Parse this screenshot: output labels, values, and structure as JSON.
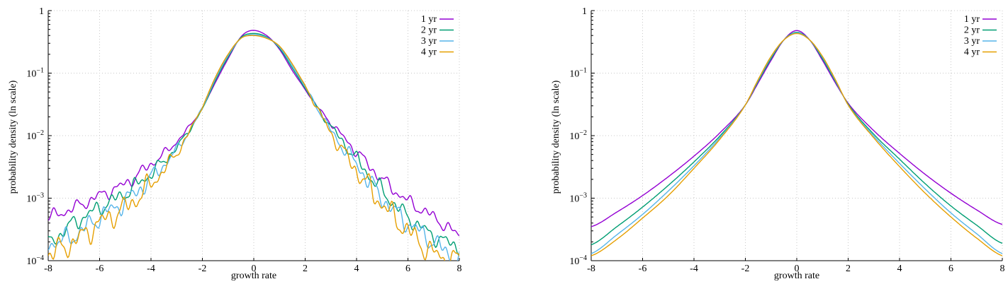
{
  "chart_data": [
    {
      "type": "line",
      "title": "",
      "xlabel": "growth rate",
      "ylabel": "probability density (ln scale)",
      "xlim": [
        -8,
        8
      ],
      "ylim": [
        0.0001,
        1
      ],
      "yscale": "log",
      "xticks": [
        -8,
        -6,
        -4,
        -2,
        0,
        2,
        4,
        6,
        8
      ],
      "xtick_labels": [
        "-8",
        "-6",
        "-4",
        "-2",
        "0",
        "2",
        "4",
        "6",
        "8"
      ],
      "yticks": [
        0.0001,
        0.001,
        0.01,
        0.1,
        1
      ],
      "ytick_labels": [
        {
          "base": "10",
          "exp": "−4"
        },
        {
          "base": "10",
          "exp": "−3"
        },
        {
          "base": "10",
          "exp": "−2"
        },
        {
          "base": "10",
          "exp": "−1"
        },
        {
          "base": "1",
          "exp": ""
        }
      ],
      "grid": true,
      "legend": "top-right",
      "noisy": true,
      "x": [
        -8,
        -7,
        -6,
        -5,
        -4,
        -3,
        -2,
        -1.5,
        -1,
        -0.5,
        -0.1,
        0.5,
        1,
        1.5,
        2,
        2.5,
        3,
        4,
        5,
        6,
        7,
        8
      ],
      "series": [
        {
          "name": "1 yr",
          "color": "#9400d3",
          "values": [
            0.0005,
            0.0007,
            0.0011,
            0.0017,
            0.0035,
            0.008,
            0.028,
            0.07,
            0.17,
            0.38,
            0.48,
            0.4,
            0.24,
            0.11,
            0.055,
            0.028,
            0.016,
            0.0055,
            0.002,
            0.0009,
            0.0005,
            0.00026
          ]
        },
        {
          "name": "2 yr",
          "color": "#009e73",
          "values": [
            0.0002,
            0.0004,
            0.0007,
            0.0012,
            0.0025,
            0.0065,
            0.027,
            0.075,
            0.18,
            0.37,
            0.43,
            0.38,
            0.25,
            0.12,
            0.057,
            0.027,
            0.014,
            0.0042,
            0.0013,
            0.0005,
            0.00025,
            0.00017
          ]
        },
        {
          "name": "3 yr",
          "color": "#56b4e9",
          "values": [
            0.00019,
            0.00025,
            0.0005,
            0.0009,
            0.0021,
            0.006,
            0.028,
            0.08,
            0.19,
            0.36,
            0.41,
            0.37,
            0.26,
            0.13,
            0.06,
            0.027,
            0.012,
            0.0035,
            0.001,
            0.0004,
            0.0002,
            0.0001
          ]
        },
        {
          "name": "4 yr",
          "color": "#e69f00",
          "values": [
            0.00013,
            0.0002,
            0.0004,
            0.0007,
            0.0017,
            0.0053,
            0.029,
            0.085,
            0.2,
            0.36,
            0.4,
            0.36,
            0.27,
            0.14,
            0.062,
            0.026,
            0.011,
            0.0028,
            0.0008,
            0.0003,
            0.00013,
            0.0001
          ]
        }
      ]
    },
    {
      "type": "line",
      "title": "",
      "xlabel": "growth rate",
      "ylabel": "probability density (ln scale)",
      "xlim": [
        -8,
        8
      ],
      "ylim": [
        0.0001,
        1
      ],
      "yscale": "log",
      "xticks": [
        -8,
        -6,
        -4,
        -2,
        0,
        2,
        4,
        6,
        8
      ],
      "xtick_labels": [
        "-8",
        "-6",
        "-4",
        "-2",
        "0",
        "2",
        "4",
        "6",
        "8"
      ],
      "yticks": [
        0.0001,
        0.001,
        0.01,
        0.1,
        1
      ],
      "ytick_labels": [
        {
          "base": "10",
          "exp": "−4"
        },
        {
          "base": "10",
          "exp": "−3"
        },
        {
          "base": "10",
          "exp": "−2"
        },
        {
          "base": "10",
          "exp": "−1"
        },
        {
          "base": "1",
          "exp": ""
        }
      ],
      "grid": true,
      "legend": "top-right",
      "noisy": false,
      "x": [
        -8,
        -7,
        -6,
        -5,
        -4,
        -3,
        -2,
        -1.5,
        -1,
        -0.5,
        0,
        0.5,
        1,
        1.5,
        2,
        3,
        4,
        5,
        6,
        7,
        8
      ],
      "series": [
        {
          "name": "1 yr",
          "color": "#9400d3",
          "values": [
            0.00035,
            0.0006,
            0.0011,
            0.0022,
            0.0047,
            0.011,
            0.031,
            0.07,
            0.16,
            0.34,
            0.48,
            0.34,
            0.16,
            0.07,
            0.033,
            0.012,
            0.0052,
            0.0024,
            0.0012,
            0.00065,
            0.00038
          ]
        },
        {
          "name": "2 yr",
          "color": "#009e73",
          "values": [
            0.00018,
            0.00035,
            0.00072,
            0.0016,
            0.0038,
            0.0098,
            0.031,
            0.074,
            0.17,
            0.34,
            0.45,
            0.34,
            0.17,
            0.074,
            0.032,
            0.0105,
            0.0042,
            0.0017,
            0.00075,
            0.00037,
            0.00019
          ]
        },
        {
          "name": "3 yr",
          "color": "#56b4e9",
          "values": [
            0.00013,
            0.00026,
            0.00055,
            0.0013,
            0.0033,
            0.0092,
            0.031,
            0.077,
            0.18,
            0.34,
            0.44,
            0.34,
            0.18,
            0.077,
            0.031,
            0.0098,
            0.0036,
            0.0014,
            0.00058,
            0.00027,
            0.00013
          ]
        },
        {
          "name": "4 yr",
          "color": "#e69f00",
          "values": [
            0.00012,
            0.00022,
            0.00048,
            0.0011,
            0.003,
            0.0087,
            0.031,
            0.079,
            0.185,
            0.34,
            0.43,
            0.34,
            0.185,
            0.079,
            0.031,
            0.0092,
            0.0032,
            0.0012,
            0.0005,
            0.00023,
            0.00012
          ]
        }
      ]
    }
  ]
}
